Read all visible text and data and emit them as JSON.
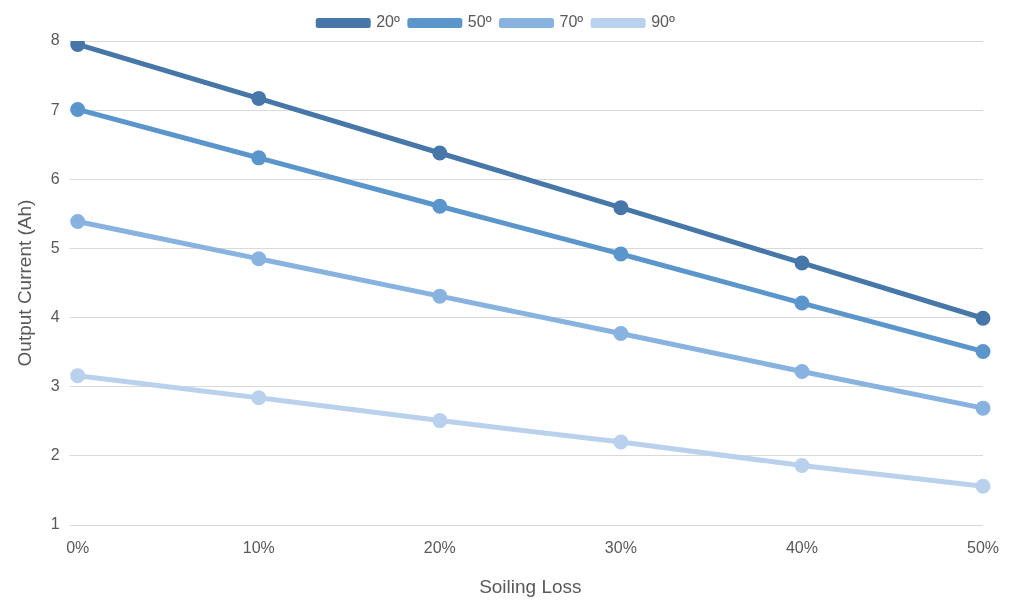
{
  "chart_data": {
    "type": "line",
    "xlabel": "Soiling Loss",
    "ylabel": "Output Current (Ah)",
    "categories": [
      "0%",
      "10%",
      "20%",
      "30%",
      "40%",
      "50%"
    ],
    "series": [
      {
        "name": "20º",
        "color": "#4677a8",
        "values": [
          7.95,
          7.17,
          6.38,
          5.59,
          4.79,
          3.99
        ]
      },
      {
        "name": "50º",
        "color": "#5a96cc",
        "values": [
          7.01,
          6.31,
          5.61,
          4.92,
          4.21,
          3.51
        ]
      },
      {
        "name": "70º",
        "color": "#88b2df",
        "values": [
          5.39,
          4.85,
          4.31,
          3.77,
          3.22,
          2.69
        ]
      },
      {
        "name": "90º",
        "color": "#b9d1ec",
        "values": [
          3.16,
          2.84,
          2.51,
          2.2,
          1.86,
          1.56
        ]
      }
    ],
    "ylim": [
      1,
      8
    ],
    "yticks": [
      1,
      2,
      3,
      4,
      5,
      6,
      7,
      8
    ],
    "grid": "y",
    "legend": "top",
    "marker": "circle",
    "line_style": "solid"
  }
}
